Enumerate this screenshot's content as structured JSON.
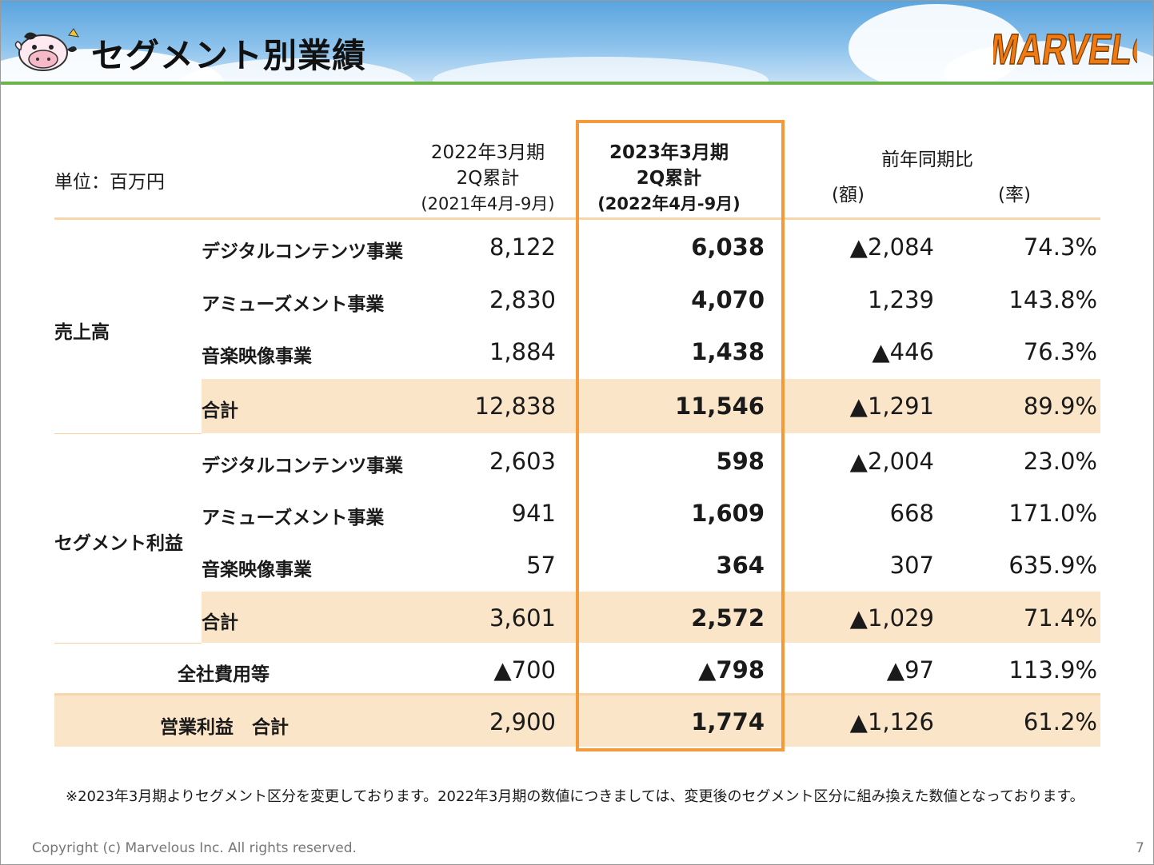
{
  "header": {
    "title": "セグメント別業績",
    "logo_text": "MARVELOUS!"
  },
  "table": {
    "unit": "単位：百万円",
    "col_prev": [
      "2022年3月期",
      "2Q累計",
      "(2021年4月-9月)"
    ],
    "col_curr": [
      "2023年3月期",
      "2Q累計",
      "(2022年4月-9月)"
    ],
    "col_yoy": "前年同期比",
    "col_yoy_amount": "(額)",
    "col_yoy_rate": "(率)",
    "groups": {
      "sales": "売上高",
      "profit": "セグメント利益"
    },
    "rows": [
      {
        "label": "デジタルコンテンツ事業",
        "prev": "8,122",
        "curr": "6,038",
        "diff": "▲2,084",
        "rate": "74.3%"
      },
      {
        "label": "アミューズメント事業",
        "prev": "2,830",
        "curr": "4,070",
        "diff": "1,239",
        "rate": "143.8%"
      },
      {
        "label": "音楽映像事業",
        "prev": "1,884",
        "curr": "1,438",
        "diff": "▲446",
        "rate": "76.3%"
      },
      {
        "label": "合計",
        "prev": "12,838",
        "curr": "11,546",
        "diff": "▲1,291",
        "rate": "89.9%"
      },
      {
        "label": "デジタルコンテンツ事業",
        "prev": "2,603",
        "curr": "598",
        "diff": "▲2,004",
        "rate": "23.0%"
      },
      {
        "label": "アミューズメント事業",
        "prev": "941",
        "curr": "1,609",
        "diff": "668",
        "rate": "171.0%"
      },
      {
        "label": "音楽映像事業",
        "prev": "57",
        "curr": "364",
        "diff": "307",
        "rate": "635.9%"
      },
      {
        "label": "合計",
        "prev": "3,601",
        "curr": "2,572",
        "diff": "▲1,029",
        "rate": "71.4%"
      },
      {
        "label": "全社費用等",
        "prev": "▲700",
        "curr": "▲798",
        "diff": "▲97",
        "rate": "113.9%"
      },
      {
        "label": "営業利益　合計",
        "prev": "2,900",
        "curr": "1,774",
        "diff": "▲1,126",
        "rate": "61.2%"
      }
    ]
  },
  "footer": {
    "note": "※2023年3月期よりセグメント区分を変更しております。2022年3月期の数値につきましては、変更後のセグメント区分に組み換えた数値となっております。",
    "copyright": "Copyright (c) Marvelous Inc. All rights reserved.",
    "page_number": "7"
  },
  "colors": {
    "highlight_border": "#f59a3a",
    "band": "#fbe5c8",
    "header_line": "#6bb34a"
  }
}
